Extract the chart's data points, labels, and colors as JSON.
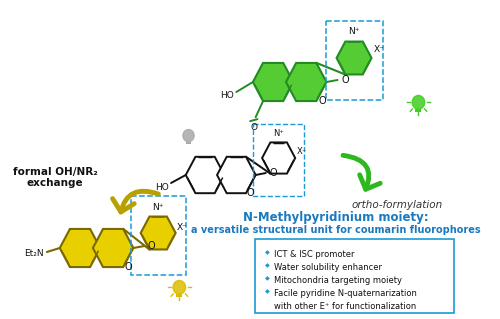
{
  "bg_color": "#ffffff",
  "center_text_line1": "N-Methylpyridinium moiety:",
  "center_text_line2": "a versatile structural unit for coumarin fluorophores",
  "center_text_color": "#1a7abf",
  "bullet_points": [
    "ICT & ISC promoter",
    "Water solubility enhancer",
    "Mitochondria targeting moiety",
    "Facile pyridine N-quaternarization",
    "with other E⁺ for functionalization"
  ],
  "bullet_color": "#1a9ad4",
  "bullet_box_edge": "#1a9ad4",
  "left_label_line1": "formal OH/NR₂",
  "left_label_line2": "exchange",
  "left_label_color": "#111111",
  "right_label": "ortho-formylation",
  "right_label_color": "#333333",
  "arrow_yellow_color": "#b8a000",
  "arrow_green_color": "#2db81e",
  "mol_line_color": "#111111",
  "top_fill": "#55cc33",
  "top_line": "#228B22",
  "bottom_fill": "#e8d000",
  "bottom_line": "#7a6800",
  "center_line": "#111111",
  "pyridinium_box_color": "#1a9ad4",
  "gray_bulb_color": "#aaaaaa",
  "green_bulb_color": "#44cc22",
  "yellow_bulb_color": "#ddbb00"
}
